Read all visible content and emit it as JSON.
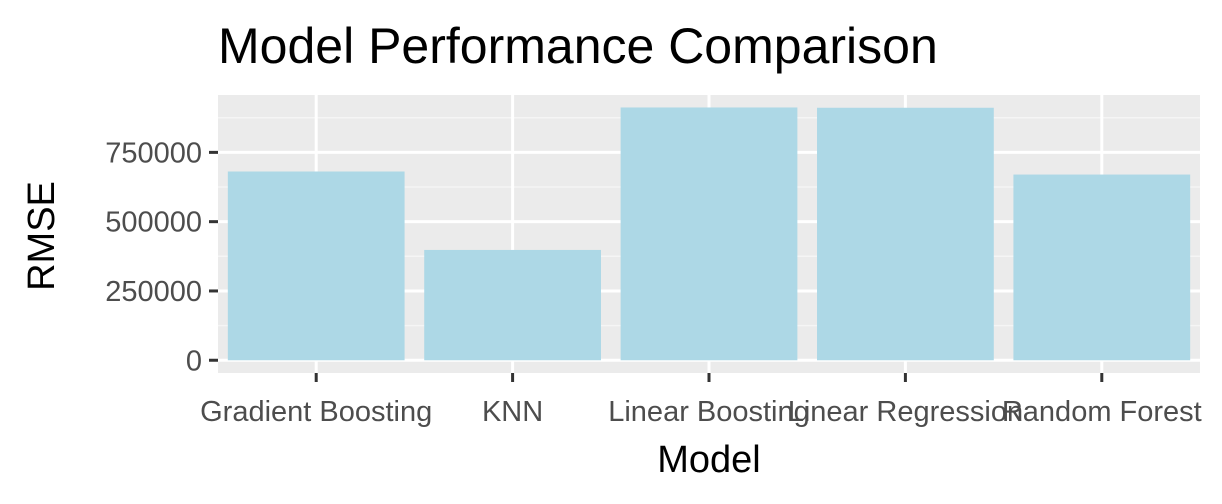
{
  "chart_data": {
    "type": "bar",
    "title": "Model Performance Comparison",
    "xlabel": "Model",
    "ylabel": "RMSE",
    "categories": [
      "Gradient Boosting",
      "KNN",
      "Linear Boosting",
      "Linear Regression",
      "Random Forest"
    ],
    "values": [
      681000,
      398000,
      912000,
      911000,
      670000
    ],
    "ylim": [
      -46000,
      957000
    ],
    "yticks": [
      0,
      250000,
      500000,
      750000
    ],
    "ytick_labels": [
      "0",
      "250000",
      "500000",
      "750000"
    ],
    "grid": true,
    "legend": "none",
    "colors": {
      "bar": "#add8e6",
      "panel_background": "#ebebeb",
      "grid_major": "#ffffff",
      "grid_minor": "#f5f5f5",
      "tick_text": "#4d4d4d",
      "tick_mark": "#333333",
      "title_text": "#000000"
    }
  }
}
